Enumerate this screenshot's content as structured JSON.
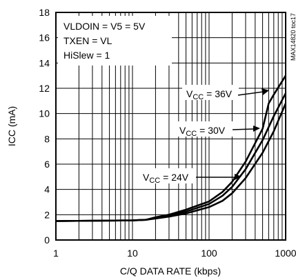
{
  "chart_data": {
    "type": "line",
    "xlabel": "C/Q DATA RATE (kbps)",
    "ylabel": "ICC (mA)",
    "xscale": "log",
    "xlim": [
      1,
      1000
    ],
    "ylim": [
      0,
      18
    ],
    "x_ticks": [
      1,
      10,
      100,
      1000
    ],
    "y_ticks": [
      0,
      2,
      4,
      6,
      8,
      10,
      12,
      14,
      16,
      18
    ],
    "grid": true,
    "conditions": [
      "VLDOIN = V5 = 5V",
      "TXEN = VL",
      "HiSlew = 1"
    ],
    "figure_code": "MAX14820 toc17",
    "series": [
      {
        "name": "VCC = 24V",
        "x": [
          1,
          10,
          15,
          20,
          30,
          50,
          100,
          150,
          200,
          300,
          500,
          700,
          1000
        ],
        "y": [
          1.5,
          1.55,
          1.6,
          1.7,
          1.85,
          2.1,
          2.6,
          3.1,
          3.7,
          4.9,
          6.9,
          8.6,
          10.8
        ]
      },
      {
        "name": "VCC = 30V",
        "x": [
          1,
          10,
          15,
          20,
          30,
          50,
          100,
          150,
          200,
          300,
          500,
          700,
          1000
        ],
        "y": [
          1.5,
          1.55,
          1.6,
          1.75,
          1.95,
          2.25,
          2.85,
          3.5,
          4.2,
          5.6,
          7.9,
          9.8,
          11.6
        ]
      },
      {
        "name": "VCC = 36V",
        "x": [
          1,
          10,
          15,
          20,
          30,
          50,
          100,
          150,
          200,
          300,
          500,
          600,
          700,
          1000
        ],
        "y": [
          1.5,
          1.55,
          1.6,
          1.8,
          2.0,
          2.4,
          3.05,
          3.8,
          4.6,
          6.2,
          8.8,
          10.8,
          11.5,
          13.0
        ]
      }
    ],
    "labels": [
      {
        "text": "V",
        "sub": "CC",
        "rest": " = 36V",
        "series": 2
      },
      {
        "text": "V",
        "sub": "CC",
        "rest": " = 30V",
        "series": 1
      },
      {
        "text": "V",
        "sub": "CC",
        "rest": " = 24V",
        "series": 0
      }
    ]
  }
}
